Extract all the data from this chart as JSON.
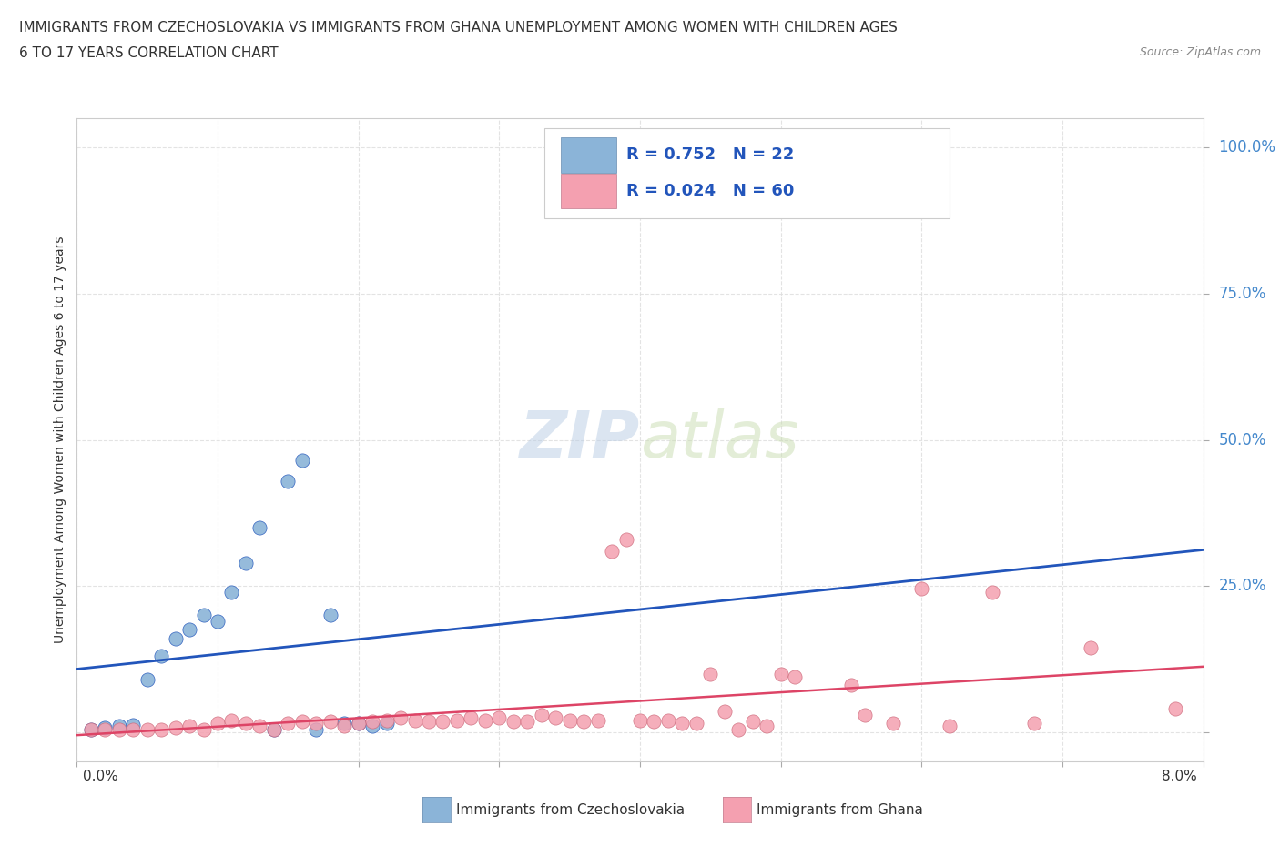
{
  "title_line1": "IMMIGRANTS FROM CZECHOSLOVAKIA VS IMMIGRANTS FROM GHANA UNEMPLOYMENT AMONG WOMEN WITH CHILDREN AGES",
  "title_line2": "6 TO 17 YEARS CORRELATION CHART",
  "source": "Source: ZipAtlas.com",
  "ylabel": "Unemployment Among Women with Children Ages 6 to 17 years",
  "legend_blue_R": 0.752,
  "legend_blue_N": 22,
  "legend_pink_R": 0.024,
  "legend_pink_N": 60,
  "legend_blue_label": "Immigrants from Czechoslovakia",
  "legend_pink_label": "Immigrants from Ghana",
  "blue_color": "#8BB4D8",
  "pink_color": "#F4A0B0",
  "blue_line_color": "#2255BB",
  "pink_line_color": "#DD4466",
  "watermark_color": "#C8DCF0",
  "background": "#FFFFFF",
  "grid_color": "#DDDDDD",
  "xlim": [
    0.0,
    0.08
  ],
  "ylim": [
    -0.05,
    1.05
  ],
  "blue_scatter_x": [
    0.001,
    0.002,
    0.003,
    0.004,
    0.005,
    0.006,
    0.007,
    0.008,
    0.009,
    0.01,
    0.011,
    0.012,
    0.013,
    0.014,
    0.015,
    0.016,
    0.017,
    0.018,
    0.019,
    0.02,
    0.021,
    0.022
  ],
  "blue_scatter_y": [
    0.005,
    0.008,
    0.01,
    0.012,
    0.09,
    0.13,
    0.16,
    0.175,
    0.2,
    0.19,
    0.24,
    0.29,
    0.35,
    0.005,
    0.43,
    0.465,
    0.005,
    0.2,
    0.015,
    0.015,
    0.01,
    0.015
  ],
  "pink_scatter_x": [
    0.001,
    0.002,
    0.003,
    0.004,
    0.005,
    0.006,
    0.007,
    0.008,
    0.009,
    0.01,
    0.011,
    0.012,
    0.013,
    0.014,
    0.015,
    0.016,
    0.017,
    0.018,
    0.019,
    0.02,
    0.021,
    0.022,
    0.023,
    0.024,
    0.025,
    0.026,
    0.027,
    0.028,
    0.029,
    0.03,
    0.031,
    0.032,
    0.033,
    0.034,
    0.035,
    0.036,
    0.037,
    0.038,
    0.039,
    0.04,
    0.041,
    0.042,
    0.043,
    0.044,
    0.045,
    0.046,
    0.047,
    0.048,
    0.049,
    0.05,
    0.051,
    0.055,
    0.056,
    0.058,
    0.06,
    0.062,
    0.065,
    0.068,
    0.072,
    0.078
  ],
  "pink_scatter_y": [
    0.005,
    0.005,
    0.005,
    0.005,
    0.005,
    0.005,
    0.008,
    0.01,
    0.005,
    0.015,
    0.02,
    0.015,
    0.01,
    0.005,
    0.015,
    0.018,
    0.015,
    0.018,
    0.01,
    0.015,
    0.018,
    0.02,
    0.025,
    0.02,
    0.018,
    0.018,
    0.02,
    0.025,
    0.02,
    0.025,
    0.018,
    0.018,
    0.03,
    0.025,
    0.02,
    0.018,
    0.02,
    0.31,
    0.33,
    0.02,
    0.018,
    0.02,
    0.015,
    0.015,
    0.1,
    0.035,
    0.005,
    0.018,
    0.01,
    0.1,
    0.095,
    0.08,
    0.03,
    0.015,
    0.245,
    0.01,
    0.24,
    0.015,
    0.145,
    0.04
  ],
  "ytick_vals": [
    0.0,
    0.25,
    0.5,
    0.75,
    1.0
  ],
  "ytick_labels": [
    "",
    "25.0%",
    "50.0%",
    "75.0%",
    "100.0%"
  ]
}
